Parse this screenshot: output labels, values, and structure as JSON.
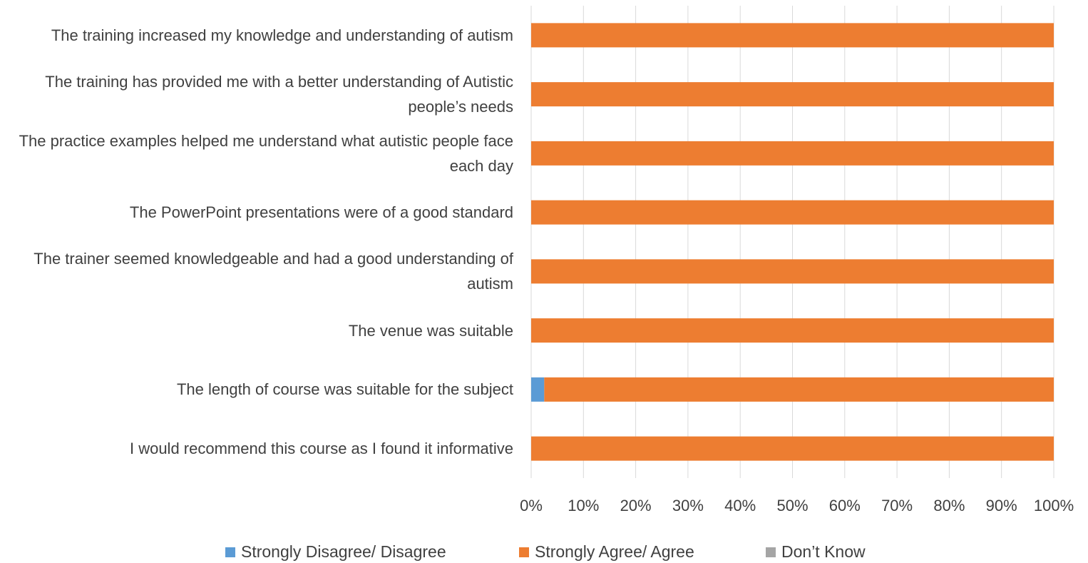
{
  "chart_data": {
    "type": "stacked_bar_horizontal",
    "categories": [
      "The training increased my knowledge and understanding of autism",
      "The training has provided me with a better understanding of Autistic people’s needs",
      "The practice examples helped me understand what autistic people face each day",
      "The PowerPoint presentations were of a good standard",
      "The trainer seemed knowledgeable and had a good understanding of autism",
      "The venue was suitable",
      "The length of course was suitable for the subject",
      "I would recommend this course as I found it informative"
    ],
    "series": [
      {
        "name": "Strongly Disagree/ Disagree",
        "color": "#5b9bd5",
        "values": [
          0,
          0,
          0,
          0,
          0,
          0,
          2.5,
          0
        ]
      },
      {
        "name": "Strongly Agree/ Agree",
        "color": "#ed7d31",
        "values": [
          100,
          100,
          100,
          100,
          100,
          100,
          97.5,
          100
        ]
      },
      {
        "name": "Don’t Know",
        "color": "#a5a5a5",
        "values": [
          0,
          0,
          0,
          0,
          0,
          0,
          0,
          0
        ]
      }
    ],
    "xlim": [
      0,
      100
    ],
    "xticks": [
      {
        "value": 0,
        "label": "0%"
      },
      {
        "value": 10,
        "label": "10%"
      },
      {
        "value": 20,
        "label": "20%"
      },
      {
        "value": 30,
        "label": "30%"
      },
      {
        "value": 40,
        "label": "40%"
      },
      {
        "value": 50,
        "label": "50%"
      },
      {
        "value": 60,
        "label": "60%"
      },
      {
        "value": 70,
        "label": "70%"
      },
      {
        "value": 80,
        "label": "80%"
      },
      {
        "value": 90,
        "label": "90%"
      },
      {
        "value": 100,
        "label": "100%"
      }
    ],
    "grid": true,
    "legend": "bottom"
  }
}
